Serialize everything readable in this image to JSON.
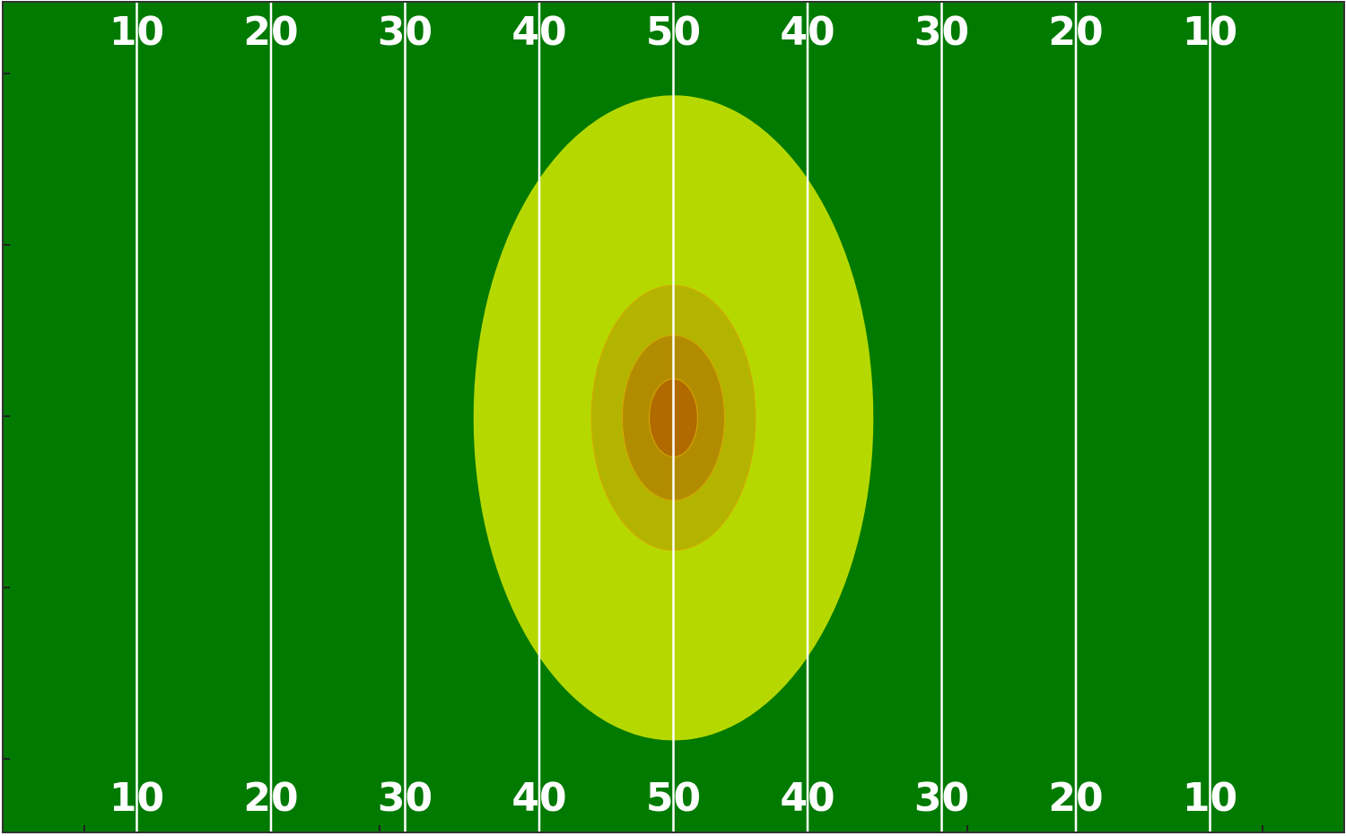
{
  "chart_data": {
    "type": "heatmap",
    "title": "",
    "xlabel": "",
    "ylabel": "",
    "xlim": [
      0,
      100
    ],
    "ylim": [
      0,
      53.3
    ],
    "grid": false,
    "legend": "none",
    "field": {
      "background_color": "#007a00",
      "line_color": "#ffffff",
      "yard_lines": [
        10,
        20,
        30,
        40,
        50,
        60,
        70,
        80,
        90
      ],
      "yard_labels": [
        "10",
        "20",
        "30",
        "40",
        "50",
        "40",
        "30",
        "20",
        "10"
      ]
    },
    "density": {
      "center": [
        50,
        26.6
      ],
      "levels": [
        {
          "level": 1,
          "radius_x": 20.7,
          "radius_y": 20.7,
          "color": "#b5d900"
        },
        {
          "level": 2,
          "radius_x": 8.5,
          "radius_y": 8.5,
          "color": "#b2b400"
        },
        {
          "level": 3,
          "radius_x": 5.3,
          "radius_y": 5.3,
          "color": "#b28c00"
        },
        {
          "level": 4,
          "radius_x": 2.5,
          "radius_y": 2.5,
          "color": "#b06a00"
        }
      ]
    }
  }
}
